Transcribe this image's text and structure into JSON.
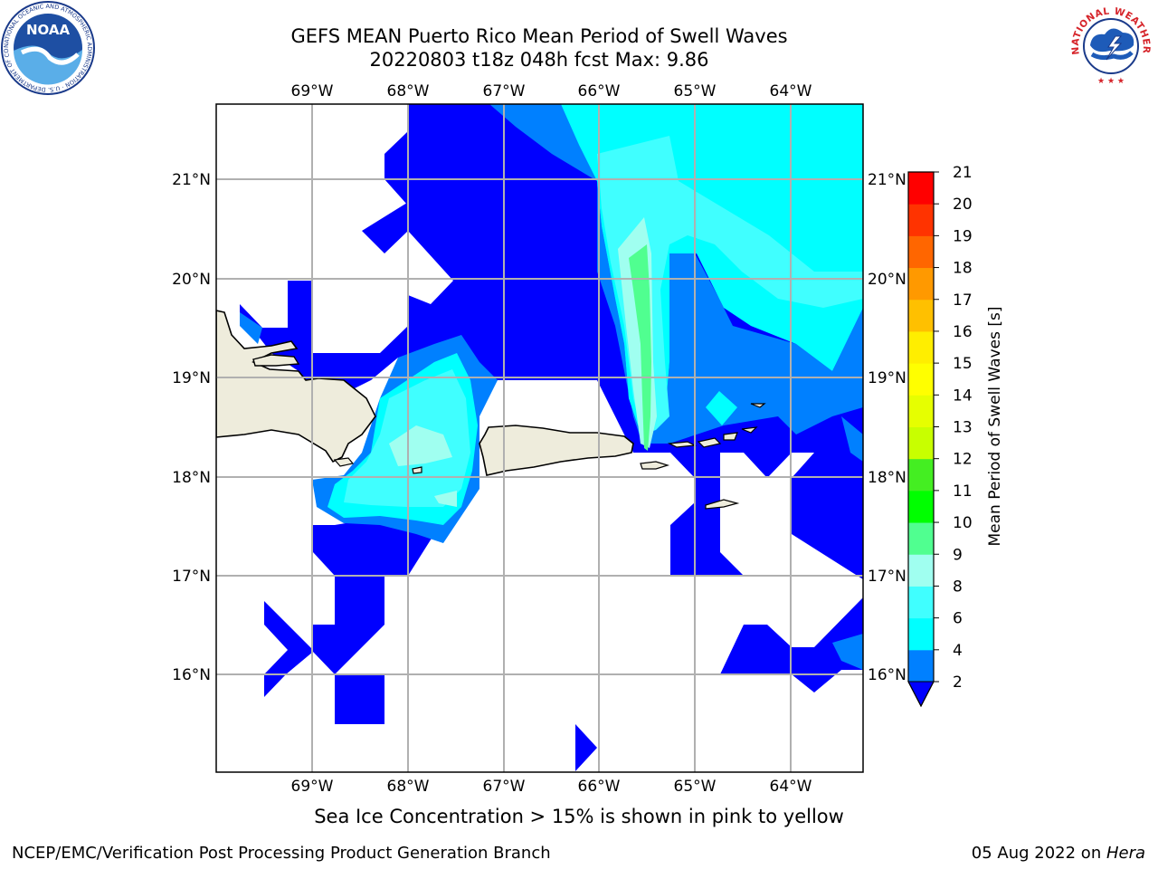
{
  "title": {
    "line1": "GEFS MEAN Puerto Rico Mean Period of Swell Waves",
    "line2": "20220803 t18z 048h fcst   Max: 9.86"
  },
  "map": {
    "lon_range": [
      -70.0,
      -63.25
    ],
    "lat_range": [
      15.0,
      21.75
    ],
    "lon_ticks": [
      "69°W",
      "68°W",
      "67°W",
      "66°W",
      "65°W",
      "64°W"
    ],
    "lat_ticks": [
      "21°N",
      "20°N",
      "19°N",
      "18°N",
      "17°N",
      "16°N"
    ],
    "grid": true,
    "land_color": "#eeecdc",
    "coastline_color": "#000000"
  },
  "colorbar": {
    "label": "Mean Period of Swell Waves [s]",
    "levels": [
      "2",
      "4",
      "6",
      "8",
      "9",
      "10",
      "11",
      "12",
      "13",
      "14",
      "15",
      "16",
      "17",
      "18",
      "19",
      "20",
      "21"
    ],
    "colors": [
      "#0000ff",
      "#0080ff",
      "#00ffff",
      "#40ffff",
      "#a0fff0",
      "#50ff90",
      "#00ff00",
      "#44ee22",
      "#c8ff00",
      "#e6ff00",
      "#ffff00",
      "#ffee00",
      "#ffc000",
      "#ff9900",
      "#ff6600",
      "#ff3300",
      "#ff0000"
    ],
    "extend": "min"
  },
  "note": "Sea Ice Concentration > 15% is shown in pink to yellow",
  "footer": {
    "left": "NCEP/EMC/Verification Post Processing Product Generation Branch",
    "right_prefix": "05 Aug 2022 on ",
    "right_italic": "Hera"
  },
  "logos": {
    "noaa": "NOAA",
    "noaa_ring": "NATIONAL OCEANIC AND ATMOSPHERIC ADMINISTRATION · U.S. DEPARTMENT OF COMMERCE",
    "nws_ring": "NATIONAL WEATHER SERVICE"
  }
}
